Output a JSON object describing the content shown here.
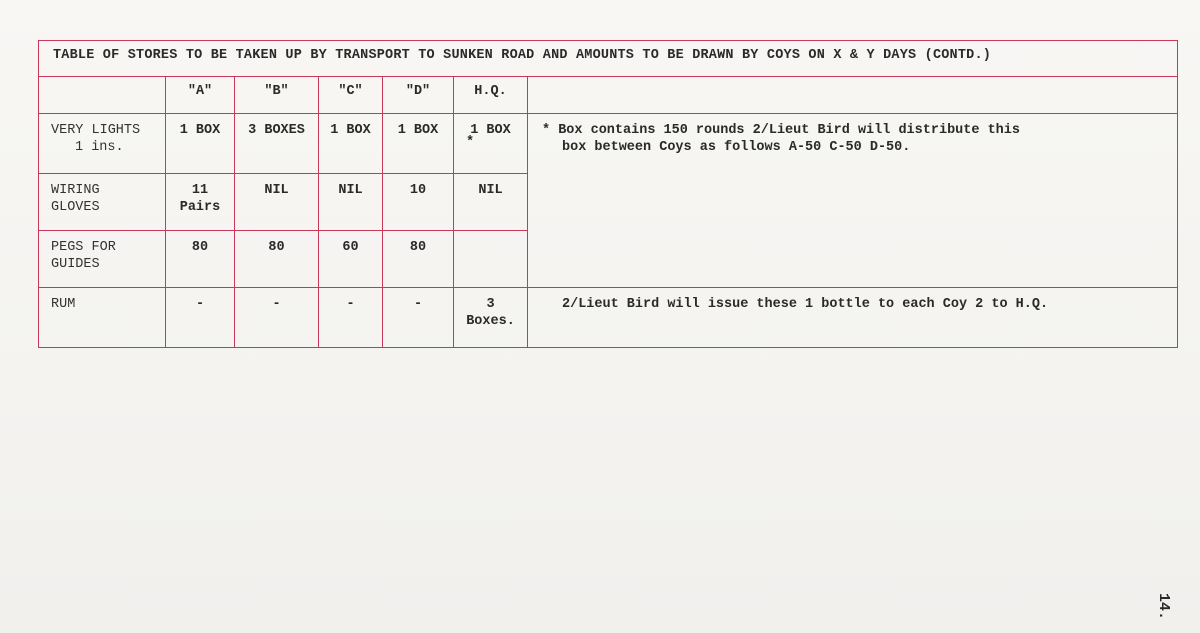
{
  "title": "TABLE OF STORES TO BE TAKEN UP BY TRANSPORT TO SUNKEN ROAD AND AMOUNTS TO BE DRAWN BY COYS ON X & Y DAYS (CONTD.)",
  "columns": [
    "\"A\"",
    "\"B\"",
    "\"C\"",
    "\"D\"",
    "H.Q."
  ],
  "rows": [
    {
      "label": [
        "VERY LIGHTS",
        "1 ins."
      ],
      "values": [
        [
          "1 BOX"
        ],
        [
          "3 BOXES"
        ],
        [
          "1 BOX"
        ],
        [
          "1 BOX"
        ],
        [
          "1 BOX",
          "*"
        ]
      ],
      "note": [
        "* Box contains 150 rounds 2/Lieut Bird will distribute this",
        "box between Coys as follows A-50 C-50 D-50."
      ]
    },
    {
      "label": [
        "WIRING",
        "GLOVES"
      ],
      "values": [
        [
          "11",
          "Pairs"
        ],
        [
          "NIL"
        ],
        [
          "NIL"
        ],
        [
          "10"
        ],
        [
          "NIL"
        ]
      ]
    },
    {
      "label": [
        "PEGS FOR",
        "GUIDES"
      ],
      "values": [
        [
          "80"
        ],
        [
          "80"
        ],
        [
          "60"
        ],
        [
          "80"
        ],
        [
          ""
        ]
      ]
    },
    {
      "label": [
        "RUM"
      ],
      "values": [
        [
          "-"
        ],
        [
          "-"
        ],
        [
          "-"
        ],
        [
          "-"
        ],
        [
          "3",
          "Boxes."
        ]
      ],
      "note": [
        "2/Lieut Bird will issue these 1 bottle to each Coy 2 to H.Q."
      ]
    }
  ],
  "page_number": "14.",
  "colors": {
    "rule": "#c8385a",
    "ink": "#2a2a2a",
    "paper": "#f7f6f3"
  }
}
